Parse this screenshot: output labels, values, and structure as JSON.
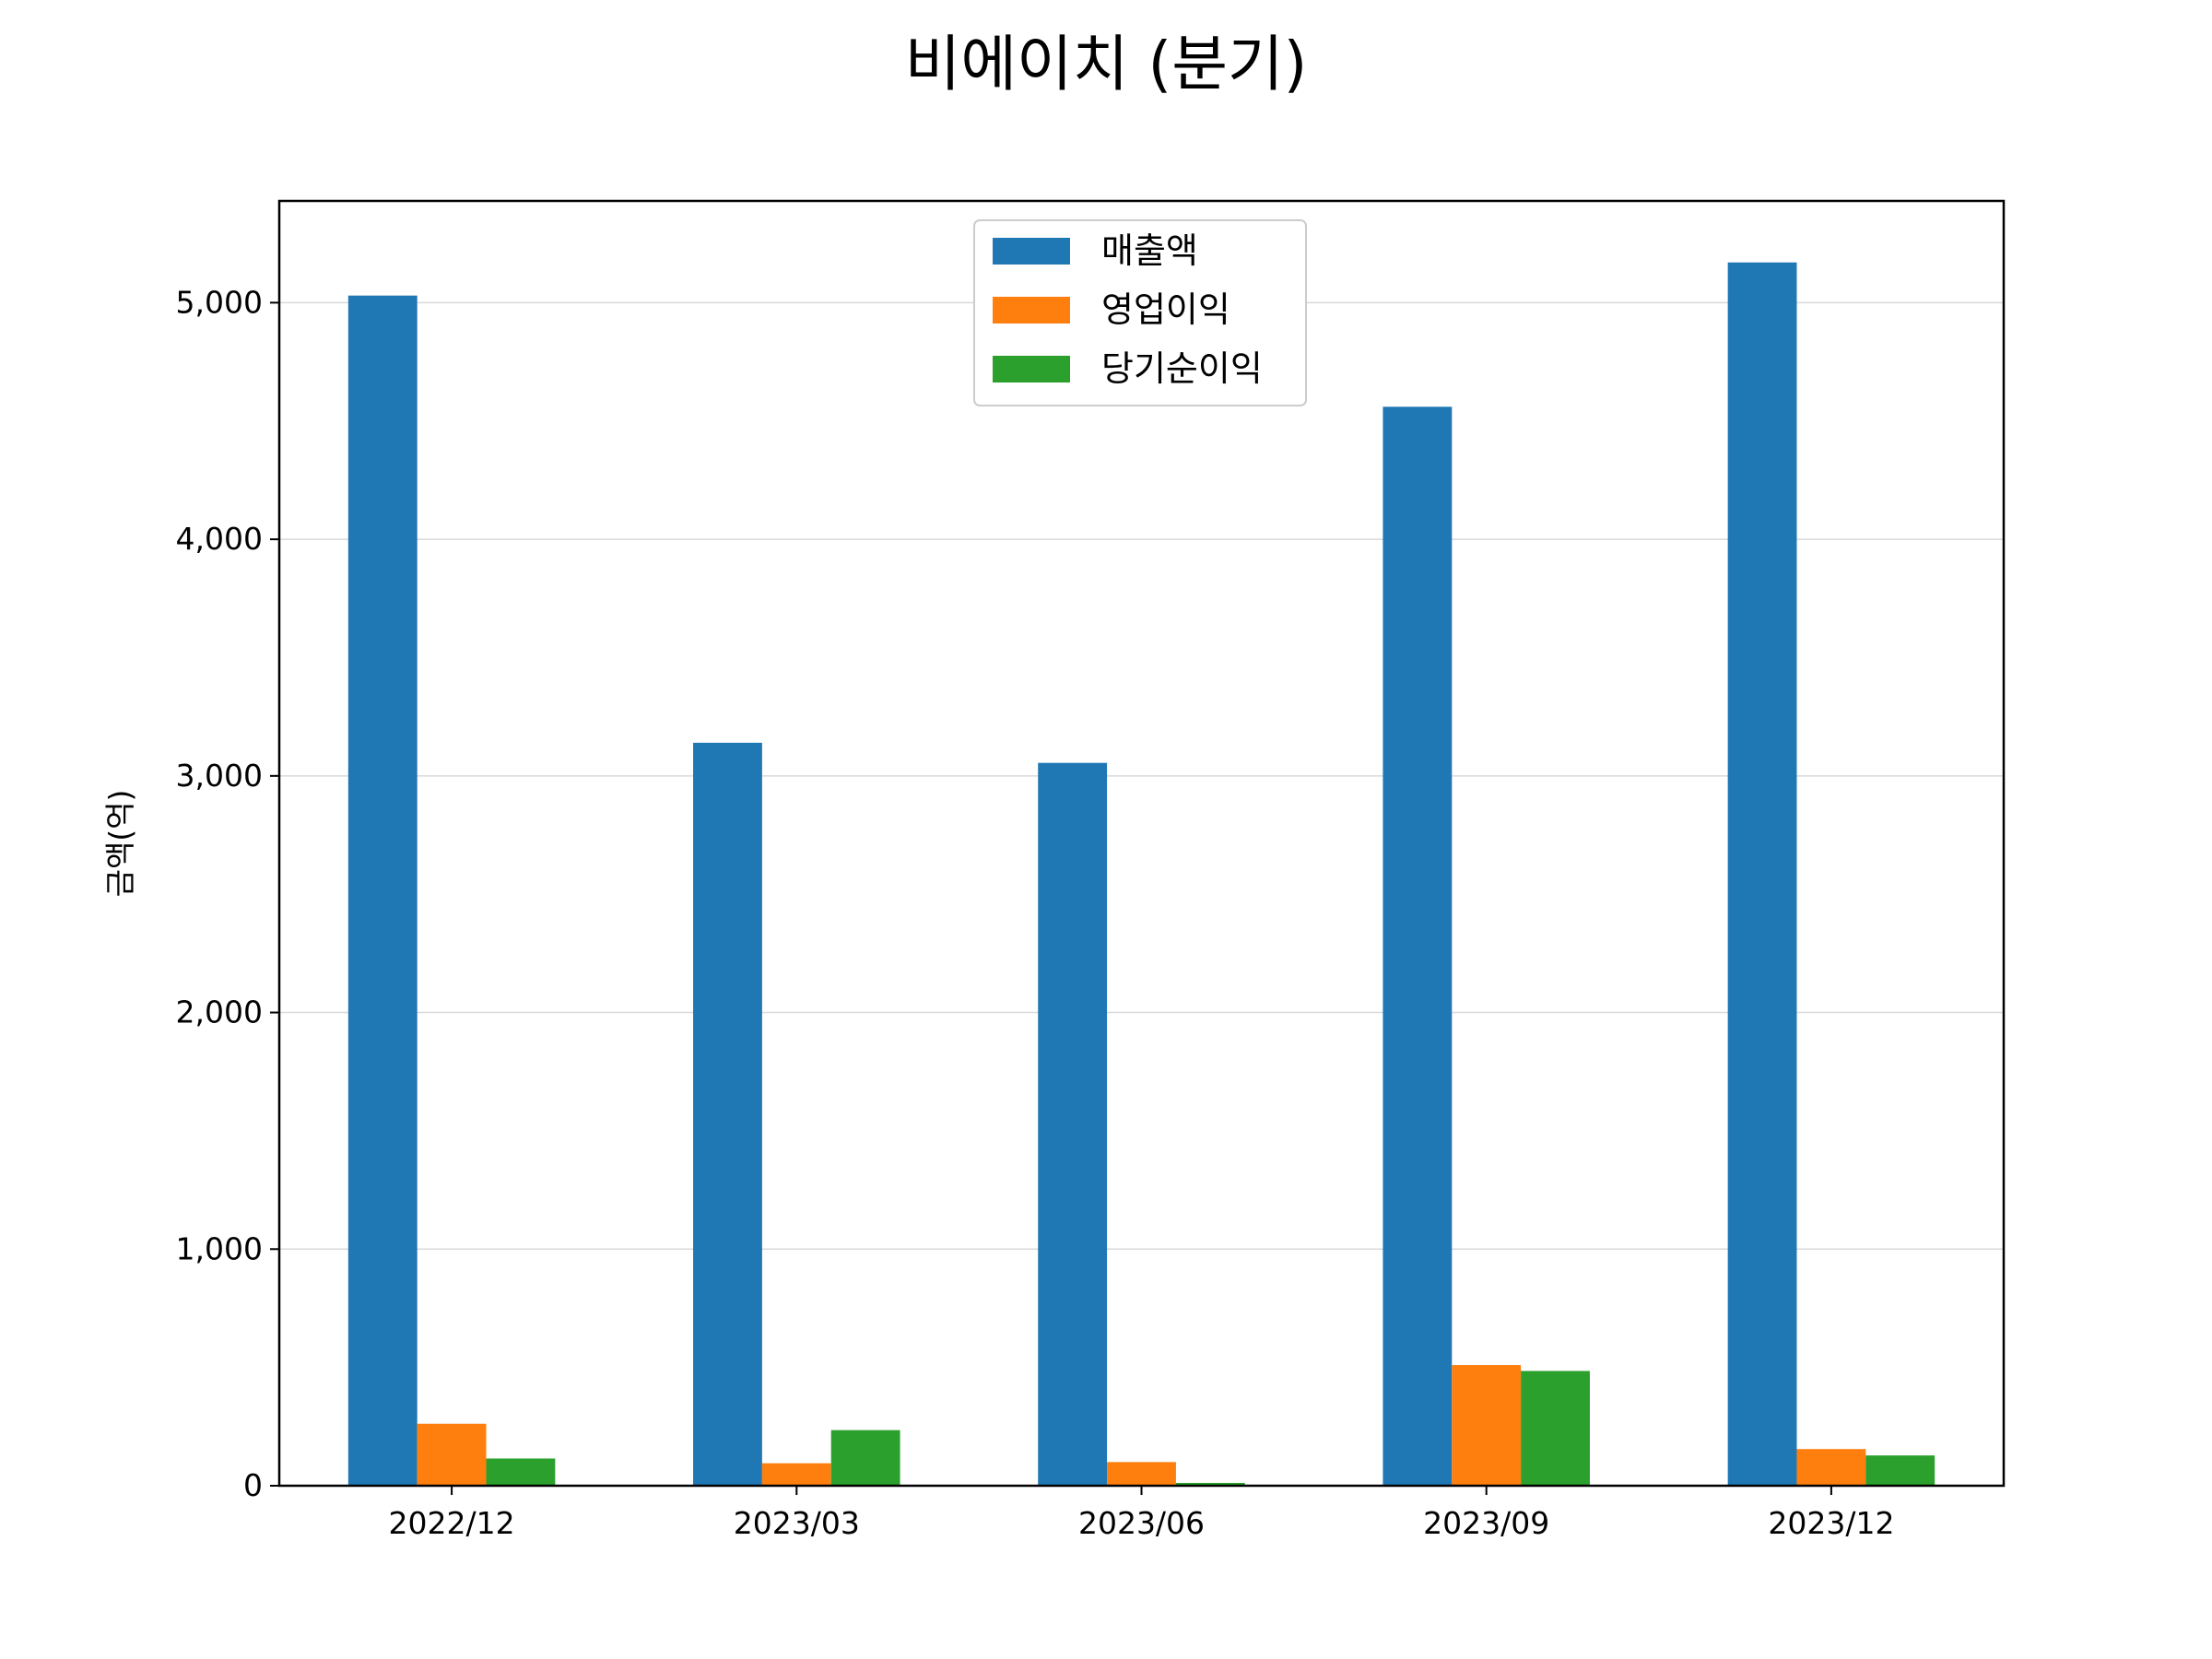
{
  "chart_data": {
    "type": "bar",
    "title": "비에이치 (분기)",
    "xlabel": "",
    "ylabel": "금액(억)",
    "categories": [
      "2022/12",
      "2023/03",
      "2023/06",
      "2023/09",
      "2023/12"
    ],
    "series": [
      {
        "name": "매출액",
        "color": "#1f77b4",
        "values": [
          5030,
          3140,
          3055,
          4560,
          5170
        ]
      },
      {
        "name": "영업이익",
        "color": "#ff7f0e",
        "values": [
          262,
          95,
          100,
          510,
          155
        ]
      },
      {
        "name": "당기순이익",
        "color": "#2ca02c",
        "values": [
          115,
          235,
          12,
          485,
          128
        ]
      }
    ],
    "ylim": [
      0,
      5430
    ],
    "yticks": [
      0,
      1000,
      2000,
      3000,
      4000,
      5000
    ],
    "ytick_labels": [
      "0",
      "1,000",
      "2,000",
      "3,000",
      "4,000",
      "5,000"
    ],
    "grid": "y",
    "legend_position": "top-center"
  }
}
